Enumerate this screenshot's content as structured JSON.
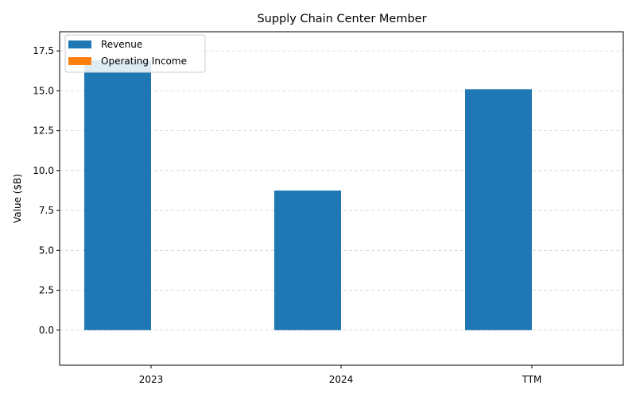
{
  "chart_data": {
    "type": "bar",
    "title": "Supply Chain Center Member",
    "xlabel": "",
    "ylabel": "Value ($B)",
    "categories": [
      "2023",
      "2024",
      "TTM"
    ],
    "series": [
      {
        "name": "Revenue",
        "color": "#1f77b4",
        "values": [
          16.9,
          8.75,
          15.1
        ]
      },
      {
        "name": "Operating Income",
        "color": "#ff7f0e",
        "values": [
          0.0,
          0.0,
          0.0
        ]
      }
    ],
    "ylim": [
      -2.2,
      18.7
    ],
    "yticks": [
      0.0,
      2.5,
      5.0,
      7.5,
      10.0,
      12.5,
      15.0,
      17.5
    ],
    "ytick_labels": [
      "0.0",
      "2.5",
      "5.0",
      "7.5",
      "10.0",
      "12.5",
      "15.0",
      "17.5"
    ],
    "grid": "y-dashed",
    "legend_position": "top-left"
  }
}
